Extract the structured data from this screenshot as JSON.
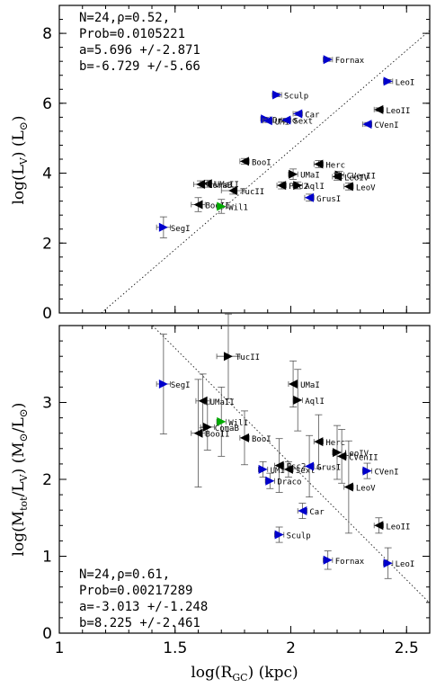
{
  "figure": {
    "x_axis_title": "log(R",
    "x_axis_sub": "GC",
    "x_axis_unit": ") (kpc)"
  },
  "chart_data": [
    {
      "type": "scatter",
      "panel": "top",
      "ylabel_text": "log(L",
      "ylabel_sub": "V",
      "ylabel_unit": ") (L",
      "ylabel_close": ")",
      "xlim": [
        1,
        2.6
      ],
      "ylim": [
        0,
        8.8
      ],
      "x_ticks": [
        1,
        1.5,
        2,
        2.5
      ],
      "x_tick_labels": [
        "1",
        "1.5",
        "2",
        "2.5"
      ],
      "y_ticks": [
        0,
        2,
        4,
        6,
        8
      ],
      "y_tick_labels": [
        "0",
        "2",
        "4",
        "6",
        "8"
      ],
      "annotations": [
        "N=24,ρ=0.52,",
        "Prob=0.0105221",
        "a=5.696      +/-2.871",
        "b=-6.729    +/-5.66"
      ],
      "fit": {
        "a": 5.696,
        "b": -6.729
      },
      "points": [
        {
          "label": "Fornax",
          "x": 2.16,
          "y": 7.25,
          "xerr": 0.02,
          "yerr": 0.05,
          "color": "#0000cc",
          "dir": "right"
        },
        {
          "label": "LeoI",
          "x": 2.42,
          "y": 6.63,
          "xerr": 0.02,
          "yerr": 0.05,
          "color": "#0000cc",
          "dir": "right"
        },
        {
          "label": "Sculp",
          "x": 1.94,
          "y": 6.24,
          "xerr": 0.02,
          "yerr": 0.05,
          "color": "#0000cc",
          "dir": "right"
        },
        {
          "label": "Car",
          "x": 2.03,
          "y": 5.7,
          "xerr": 0.02,
          "yerr": 0.05,
          "color": "#0000cc",
          "dir": "left"
        },
        {
          "label": "Draco",
          "x": 1.89,
          "y": 5.55,
          "xerr": 0.02,
          "yerr": 0.05,
          "color": "#0000cc",
          "dir": "right"
        },
        {
          "label": "UMi",
          "x": 1.9,
          "y": 5.5,
          "xerr": 0.02,
          "yerr": 0.05,
          "color": "#0000cc",
          "dir": "left"
        },
        {
          "label": "Sext",
          "x": 1.98,
          "y": 5.52,
          "xerr": 0.02,
          "yerr": 0.05,
          "color": "#0000cc",
          "dir": "left"
        },
        {
          "label": "LeoII",
          "x": 2.38,
          "y": 5.82,
          "xerr": 0.02,
          "yerr": 0.05,
          "color": "#000000",
          "dir": "left"
        },
        {
          "label": "CVenI",
          "x": 2.33,
          "y": 5.4,
          "xerr": 0.02,
          "yerr": 0.05,
          "color": "#0000cc",
          "dir": "left"
        },
        {
          "label": "BooI",
          "x": 1.8,
          "y": 4.34,
          "xerr": 0.02,
          "yerr": 0.08,
          "color": "#000000",
          "dir": "left"
        },
        {
          "label": "Herc",
          "x": 2.12,
          "y": 4.26,
          "xerr": 0.02,
          "yerr": 0.1,
          "color": "#000000",
          "dir": "left"
        },
        {
          "label": "UMaI",
          "x": 2.01,
          "y": 3.97,
          "xerr": 0.02,
          "yerr": 0.15,
          "color": "#000000",
          "dir": "right"
        },
        {
          "label": "CVenII",
          "x": 2.21,
          "y": 3.95,
          "xerr": 0.02,
          "yerr": 0.1,
          "color": "#000000",
          "dir": "right"
        },
        {
          "label": "LeoIV",
          "x": 2.2,
          "y": 3.9,
          "xerr": 0.02,
          "yerr": 0.1,
          "color": "#000000",
          "dir": "left"
        },
        {
          "label": "LeoV",
          "x": 2.25,
          "y": 3.62,
          "xerr": 0.02,
          "yerr": 0.1,
          "color": "#000000",
          "dir": "left"
        },
        {
          "label": "UMaII",
          "x": 1.64,
          "y": 3.7,
          "xerr": 0.03,
          "yerr": 0.1,
          "color": "#000000",
          "dir": "left"
        },
        {
          "label": "ComaB",
          "x": 1.61,
          "y": 3.68,
          "xerr": 0.03,
          "yerr": 0.1,
          "color": "#000000",
          "dir": "left"
        },
        {
          "label": "TucII",
          "x": 1.75,
          "y": 3.5,
          "xerr": 0.05,
          "yerr": 0.1,
          "color": "#000000",
          "dir": "left"
        },
        {
          "label": "Psc2",
          "x": 1.96,
          "y": 3.65,
          "xerr": 0.02,
          "yerr": 0.1,
          "color": "#000000",
          "dir": "left"
        },
        {
          "label": "AqlI",
          "x": 2.03,
          "y": 3.65,
          "xerr": 0.02,
          "yerr": 0.1,
          "color": "#000000",
          "dir": "right"
        },
        {
          "label": "GrusI",
          "x": 2.08,
          "y": 3.3,
          "xerr": 0.02,
          "yerr": 0.1,
          "color": "#0000cc",
          "dir": "left"
        },
        {
          "label": "BooII",
          "x": 1.6,
          "y": 3.1,
          "xerr": 0.03,
          "yerr": 0.2,
          "color": "#000000",
          "dir": "left"
        },
        {
          "label": "Wil1",
          "x": 1.7,
          "y": 3.05,
          "xerr": 0.02,
          "yerr": 0.2,
          "color": "#00aa00",
          "dir": "right"
        },
        {
          "label": "SegI",
          "x": 1.45,
          "y": 2.45,
          "xerr": 0.03,
          "yerr": 0.3,
          "color": "#0000cc",
          "dir": "right"
        }
      ]
    },
    {
      "type": "scatter",
      "panel": "bottom",
      "ylabel_text": "log(M",
      "ylabel_sub": "tot",
      "ylabel_unit": "/L",
      "ylabel_sub2": "V",
      "ylabel_rest": ") (M",
      "ylabel_mid": "/L",
      "ylabel_close": ")",
      "xlim": [
        1,
        2.6
      ],
      "ylim": [
        0,
        4.0
      ],
      "x_ticks": [
        1,
        1.5,
        2,
        2.5
      ],
      "x_tick_labels": [
        "1",
        "1.5",
        "2",
        "2.5"
      ],
      "y_ticks": [
        0,
        1,
        2,
        3
      ],
      "y_tick_labels": [
        "0",
        "1",
        "2",
        "3"
      ],
      "annotations": [
        "N=24,ρ=0.61,",
        "Prob=0.00217289",
        "a=-3.013    +/-1.248",
        "b=8.225      +/-2.461"
      ],
      "fit": {
        "a": -3.013,
        "b": 8.225
      },
      "points": [
        {
          "label": "SegI",
          "x": 1.45,
          "y": 3.24,
          "xerr": 0.03,
          "yerr": 0.65,
          "color": "#0000cc",
          "dir": "right"
        },
        {
          "label": "TucII",
          "x": 1.73,
          "y": 3.6,
          "xerr": 0.05,
          "yerr": 0.55,
          "color": "#000000",
          "dir": "right"
        },
        {
          "label": "UMaI",
          "x": 2.01,
          "y": 3.24,
          "xerr": 0.02,
          "yerr": 0.3,
          "color": "#000000",
          "dir": "left"
        },
        {
          "label": "UMaII",
          "x": 1.62,
          "y": 3.02,
          "xerr": 0.03,
          "yerr": 0.35,
          "color": "#000000",
          "dir": "left"
        },
        {
          "label": "AqlI",
          "x": 2.03,
          "y": 3.03,
          "xerr": 0.02,
          "yerr": 0.4,
          "color": "#000000",
          "dir": "right"
        },
        {
          "label": "Wil1",
          "x": 1.7,
          "y": 2.75,
          "xerr": 0.02,
          "yerr": 0.45,
          "color": "#00aa00",
          "dir": "right"
        },
        {
          "label": "ComaB",
          "x": 1.64,
          "y": 2.68,
          "xerr": 0.03,
          "yerr": 0.3,
          "color": "#000000",
          "dir": "right"
        },
        {
          "label": "BooII",
          "x": 1.6,
          "y": 2.6,
          "xerr": 0.03,
          "yerr": 0.7,
          "color": "#000000",
          "dir": "left"
        },
        {
          "label": "BooI",
          "x": 1.8,
          "y": 2.54,
          "xerr": 0.02,
          "yerr": 0.35,
          "color": "#000000",
          "dir": "left"
        },
        {
          "label": "Herc",
          "x": 2.12,
          "y": 2.49,
          "xerr": 0.02,
          "yerr": 0.35,
          "color": "#000000",
          "dir": "left"
        },
        {
          "label": "LeoIV",
          "x": 2.2,
          "y": 2.35,
          "xerr": 0.02,
          "yerr": 0.35,
          "color": "#000000",
          "dir": "right"
        },
        {
          "label": "CVenII",
          "x": 2.22,
          "y": 2.3,
          "xerr": 0.02,
          "yerr": 0.35,
          "color": "#000000",
          "dir": "left"
        },
        {
          "label": "Psc2",
          "x": 1.95,
          "y": 2.18,
          "xerr": 0.02,
          "yerr": 0.35,
          "color": "#000000",
          "dir": "left"
        },
        {
          "label": "UMi",
          "x": 1.88,
          "y": 2.13,
          "xerr": 0.02,
          "yerr": 0.1,
          "color": "#0000cc",
          "dir": "right"
        },
        {
          "label": "Sext",
          "x": 1.99,
          "y": 2.13,
          "xerr": 0.02,
          "yerr": 0.1,
          "color": "#000000",
          "dir": "left"
        },
        {
          "label": "GrusI",
          "x": 2.08,
          "y": 2.17,
          "xerr": 0.02,
          "yerr": 0.4,
          "color": "#0000cc",
          "dir": "left"
        },
        {
          "label": "CVenI",
          "x": 2.33,
          "y": 2.11,
          "xerr": 0.02,
          "yerr": 0.1,
          "color": "#0000cc",
          "dir": "right"
        },
        {
          "label": "Draco",
          "x": 1.91,
          "y": 1.98,
          "xerr": 0.02,
          "yerr": 0.1,
          "color": "#0000cc",
          "dir": "right"
        },
        {
          "label": "LeoV",
          "x": 2.25,
          "y": 1.9,
          "xerr": 0.02,
          "yerr": 0.6,
          "color": "#000000",
          "dir": "left"
        },
        {
          "label": "Car",
          "x": 2.05,
          "y": 1.59,
          "xerr": 0.02,
          "yerr": 0.1,
          "color": "#0000cc",
          "dir": "left"
        },
        {
          "label": "LeoII",
          "x": 2.38,
          "y": 1.4,
          "xerr": 0.02,
          "yerr": 0.1,
          "color": "#000000",
          "dir": "left"
        },
        {
          "label": "Sculp",
          "x": 1.95,
          "y": 1.28,
          "xerr": 0.02,
          "yerr": 0.1,
          "color": "#0000cc",
          "dir": "right"
        },
        {
          "label": "Fornax",
          "x": 2.16,
          "y": 0.95,
          "xerr": 0.02,
          "yerr": 0.12,
          "color": "#0000cc",
          "dir": "right"
        },
        {
          "label": "LeoI",
          "x": 2.42,
          "y": 0.91,
          "xerr": 0.02,
          "yerr": 0.2,
          "color": "#0000cc",
          "dir": "right"
        }
      ]
    }
  ]
}
